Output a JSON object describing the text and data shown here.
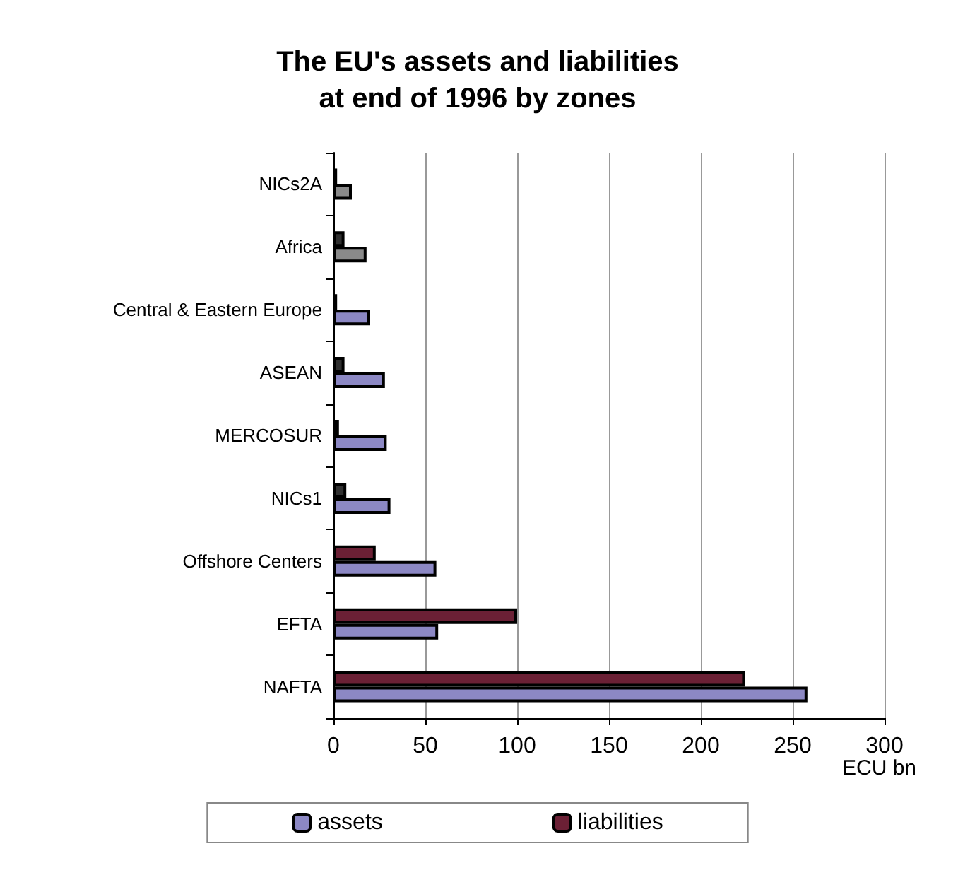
{
  "chart_data": {
    "type": "bar",
    "orientation": "horizontal",
    "title": "The EU's assets and liabilities\nat end of 1996 by zones",
    "xlabel": "ECU bn",
    "categories": [
      "NICs2A",
      "Africa",
      "Central & Eastern Europe",
      "ASEAN",
      "MERCOSUR",
      "NICs1",
      "Offshore Centers",
      "EFTA",
      "NAFTA"
    ],
    "series": [
      {
        "name": "assets",
        "color": "#8c88c4",
        "colors": [
          "#8a8a8a",
          "#8a8a8a",
          "#8c88c4",
          "#8c88c4",
          "#8c88c4",
          "#8c88c4",
          "#8c88c4",
          "#8c88c4",
          "#8c88c4"
        ],
        "values": [
          10,
          18,
          20,
          28,
          29,
          31,
          56,
          57,
          258
        ]
      },
      {
        "name": "liabilities",
        "color": "#6b2035",
        "colors": [
          "#303030",
          "#303030",
          "#303030",
          "#303030",
          "#303030",
          "#303030",
          "#6b2035",
          "#6b2035",
          "#6b2035"
        ],
        "values": [
          2,
          6,
          2,
          6,
          3,
          7,
          23,
          100,
          224
        ]
      }
    ],
    "xlim": [
      0,
      300
    ],
    "xticks": [
      0,
      50,
      100,
      150,
      200,
      250,
      300
    ],
    "grid": "x",
    "legend": "bottom"
  }
}
